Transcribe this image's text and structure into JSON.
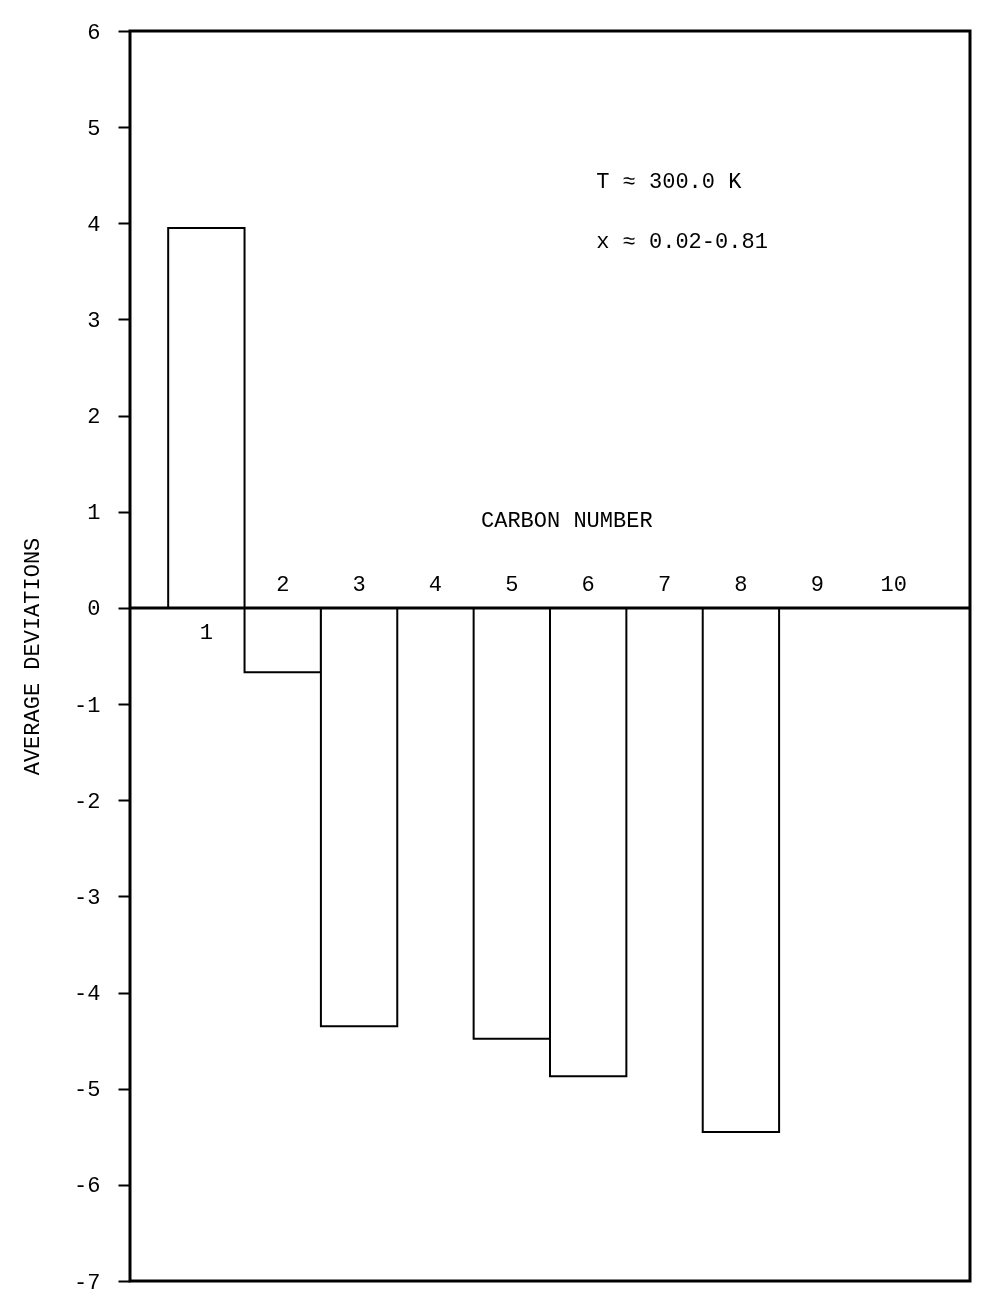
{
  "chart_data": {
    "type": "bar",
    "xlabel": "CARBON NUMBER",
    "ylabel": "AVERAGE DEVIATIONS",
    "categories": [
      "1",
      "2",
      "3",
      "4",
      "5",
      "6",
      "7",
      "8",
      "9",
      "10"
    ],
    "values": [
      3.95,
      -0.67,
      -4.35,
      null,
      -4.48,
      -4.87,
      null,
      -5.45,
      null,
      null
    ],
    "color": "#ffffff",
    "ylim": [
      -7,
      6
    ],
    "yticks": [
      -7,
      -6,
      -5,
      -4,
      -3,
      -2,
      -1,
      0,
      1,
      2,
      3,
      4,
      5,
      6
    ],
    "grid": false,
    "annotations": [
      "T ≈ 300.0 K",
      "x ≈ 0.02-0.81"
    ]
  }
}
